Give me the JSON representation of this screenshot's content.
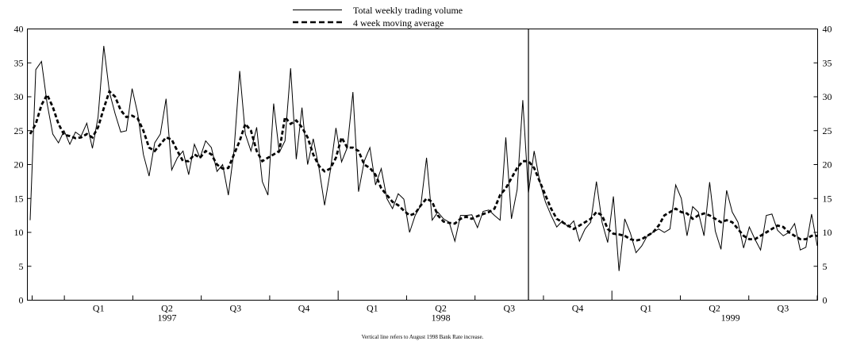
{
  "chart_data": {
    "type": "line",
    "title": "",
    "xlabel": "",
    "ylabel": "",
    "ylim": [
      0,
      40
    ],
    "y_ticks": [
      "0",
      "5",
      "10",
      "15",
      "20",
      "25",
      "30",
      "35",
      "40"
    ],
    "right_y_ticks": [
      "0",
      "5",
      "10",
      "15",
      "20",
      "25",
      "30",
      "35",
      "40"
    ],
    "quarter_labels": [
      "Q1",
      "Q2",
      "Q3",
      "Q4",
      "Q1",
      "Q2",
      "Q3",
      "Q4",
      "Q1",
      "Q2",
      "Q3"
    ],
    "years": [
      "1997",
      "1998",
      "1999"
    ],
    "legend_placement": "top-center",
    "grid": false,
    "series": [
      {
        "name": "Total weekly trading volume",
        "style": "solid",
        "color": "#000000",
        "values": [
          11.8,
          34.0,
          35.2,
          29.0,
          24.5,
          23.2,
          25.0,
          23.0,
          24.8,
          24.2,
          26.1,
          22.4,
          27.0,
          37.5,
          30.7,
          27.5,
          24.8,
          25.0,
          31.2,
          27.5,
          21.5,
          18.3,
          23.2,
          24.5,
          29.7,
          19.2,
          21.0,
          22.0,
          18.5,
          23.0,
          21.0,
          23.5,
          22.5,
          19.0,
          20.0,
          15.5,
          22.0,
          33.8,
          24.5,
          22.0,
          25.5,
          17.5,
          15.5,
          29.0,
          21.8,
          23.5,
          34.2,
          20.8,
          28.4,
          20.0,
          23.8,
          19.5,
          14.0,
          19.0,
          25.4,
          20.4,
          22.5,
          30.7,
          16.0,
          20.5,
          22.5,
          17.0,
          19.4,
          15.0,
          13.5,
          15.7,
          14.9,
          10.0,
          12.5,
          14.0,
          21.0,
          11.8,
          13.0,
          12.0,
          11.5,
          8.7,
          12.5,
          12.5,
          12.6,
          10.7,
          13.1,
          13.3,
          12.5,
          11.8,
          24.0,
          12.0,
          16.3,
          29.5,
          15.8,
          22.0,
          17.5,
          14.5,
          12.5,
          10.8,
          11.7,
          10.8,
          11.7,
          8.7,
          10.5,
          11.5,
          17.5,
          11.5,
          8.5,
          15.3,
          4.3,
          12.0,
          9.9,
          7.0,
          8.0,
          9.5,
          10.0,
          10.5,
          10.0,
          10.5,
          17.0,
          15.0,
          9.5,
          13.8,
          13.0,
          9.5,
          17.4,
          10.2,
          7.5,
          16.2,
          13.0,
          11.5,
          7.7,
          10.8,
          9.0,
          7.4,
          12.5,
          12.7,
          10.3,
          9.5,
          10.0,
          11.3,
          7.4,
          7.8,
          12.7,
          8.0
        ]
      },
      {
        "name": "4 week moving average",
        "style": "dashed",
        "color": "#000000",
        "values": [
          24.5,
          26.0,
          28.8,
          30.3,
          28.5,
          26.0,
          24.4,
          24.2,
          23.9,
          24.0,
          24.5,
          24.0,
          25.5,
          28.3,
          30.8,
          30.0,
          28.0,
          27.0,
          27.2,
          26.8,
          25.0,
          22.5,
          22.0,
          23.0,
          24.0,
          23.7,
          22.0,
          20.5,
          20.5,
          21.5,
          21.0,
          22.0,
          21.5,
          20.0,
          19.4,
          19.5,
          21.5,
          23.5,
          26.0,
          25.0,
          22.0,
          20.5,
          21.0,
          21.5,
          22.0,
          27.0,
          26.0,
          26.5,
          25.5,
          24.0,
          21.5,
          19.8,
          19.0,
          19.4,
          21.0,
          24.0,
          22.5,
          22.5,
          22.0,
          20.0,
          19.5,
          18.5,
          16.5,
          15.5,
          14.5,
          14.0,
          13.2,
          12.5,
          12.8,
          14.0,
          15.0,
          14.5,
          12.5,
          11.6,
          11.4,
          11.3,
          12.0,
          12.3,
          12.0,
          12.4,
          12.7,
          13.0,
          13.5,
          15.5,
          16.5,
          18.0,
          19.5,
          20.5,
          20.5,
          19.5,
          17.5,
          15.5,
          13.5,
          12.0,
          11.5,
          11.0,
          10.5,
          11.0,
          11.5,
          12.0,
          13.0,
          12.5,
          10.5,
          9.8,
          9.7,
          9.5,
          9.0,
          8.8,
          9.0,
          9.5,
          10.0,
          11.0,
          12.5,
          13.0,
          13.5,
          13.0,
          12.8,
          12.0,
          12.5,
          12.8,
          12.5,
          12.0,
          11.5,
          11.8,
          11.5,
          10.5,
          9.5,
          9.0,
          9.0,
          9.5,
          10.0,
          10.5,
          11.0,
          10.8,
          10.0,
          9.5,
          9.0,
          9.0,
          9.5,
          9.5
        ]
      }
    ],
    "annotation": "Vertical line refers to August 1998 Bank Rate increase.",
    "vertical_line_index": 88
  }
}
